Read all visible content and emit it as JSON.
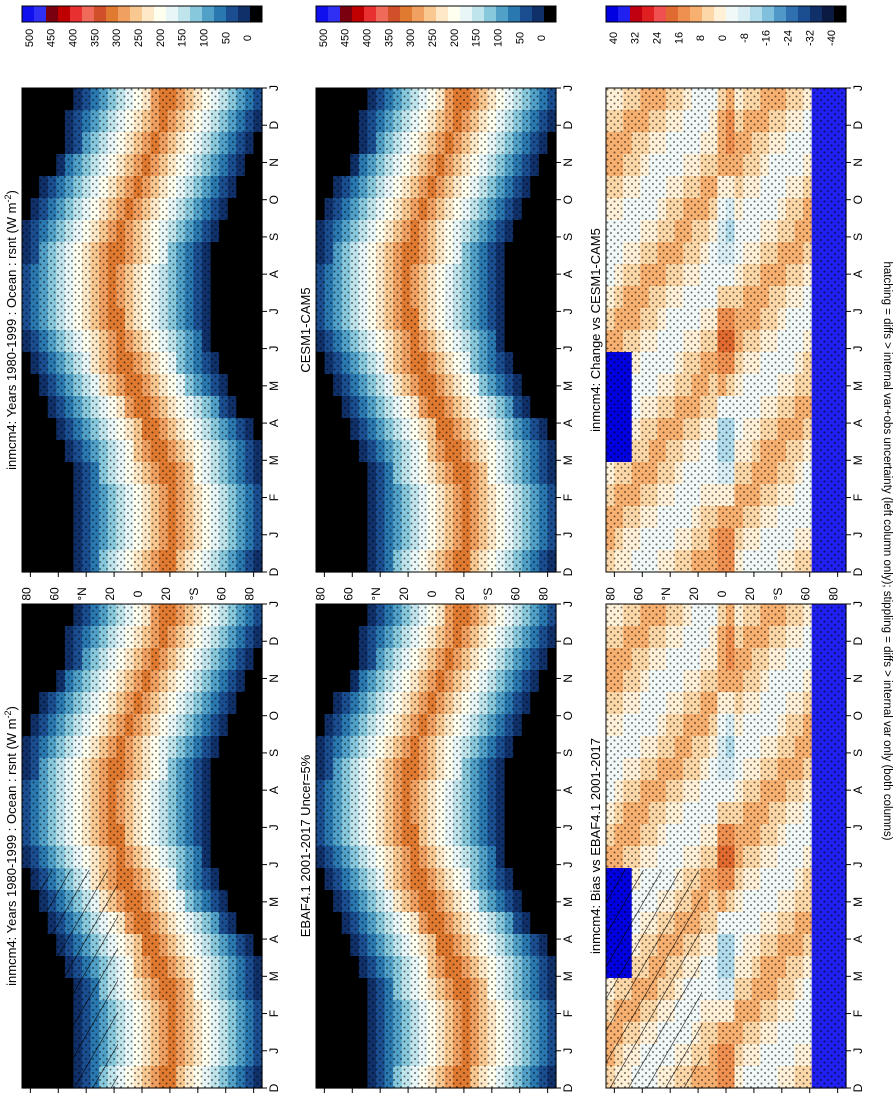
{
  "figure": {
    "footnote": "hatching = diffs > internal var+obs uncertainty (left column only); stippling = diffs > internal var only (both columns)"
  },
  "chart_data": [
    {
      "type": "heatmap",
      "id": "p_model_left",
      "title": "inmcm4: Years 1980-1999 : Ocean : rsnt (W m",
      "title_sup": "-2",
      "title_end": ")",
      "xlabel": "",
      "ylabel": "°N / °S",
      "months": [
        "D",
        "J",
        "F",
        "M",
        "A",
        "M",
        "J",
        "J",
        "A",
        "S",
        "O",
        "N",
        "D",
        "J"
      ],
      "lat_ticks": [
        "80",
        "60",
        "°N",
        "20",
        "0",
        "20",
        "°S",
        "60",
        "80"
      ],
      "colorbar_labels": [
        "500",
        "450",
        "400",
        "350",
        "300",
        "250",
        "200",
        "150",
        "100",
        "50",
        "0"
      ],
      "colorbar_colors": [
        "#1010ee",
        "#3030f5",
        "#7a0010",
        "#c00000",
        "#e83030",
        "#f06a5a",
        "#d0502a",
        "#e07a30",
        "#f0a060",
        "#f8c890",
        "#fde8c8",
        "#fffff0",
        "#e8f6f8",
        "#c0e4ec",
        "#88c8dc",
        "#50a0c8",
        "#2a78b0",
        "#1a4e90",
        "#10306a",
        "#000000"
      ],
      "field": "absolute",
      "hatched": true
    },
    {
      "type": "heatmap",
      "id": "p_model_right",
      "title": "inmcm4: Years 1980-1999 : Ocean : rsnt (W m",
      "title_sup": "-2",
      "title_end": ")",
      "months": [
        "D",
        "J",
        "F",
        "M",
        "A",
        "M",
        "J",
        "J",
        "A",
        "S",
        "O",
        "N",
        "D",
        "J"
      ],
      "lat_ticks": [
        "80",
        "60",
        "°N",
        "20",
        "0",
        "20",
        "°S",
        "60",
        "80"
      ],
      "colorbar_labels": [
        "500",
        "450",
        "400",
        "350",
        "300",
        "250",
        "200",
        "150",
        "100",
        "50",
        "0"
      ],
      "field": "absolute",
      "hatched": false
    },
    {
      "type": "heatmap",
      "id": "p_obs",
      "title": "EBAF4.1 2001-2017 Uncer=5%",
      "months": [
        "D",
        "J",
        "F",
        "M",
        "A",
        "M",
        "J",
        "J",
        "A",
        "S",
        "O",
        "N",
        "D",
        "J"
      ],
      "lat_ticks": [
        "80",
        "60",
        "°N",
        "20",
        "0",
        "20",
        "°S",
        "60",
        "80"
      ],
      "colorbar_labels": [
        "500",
        "450",
        "400",
        "350",
        "300",
        "250",
        "200",
        "150",
        "100",
        "50",
        "0"
      ],
      "field": "absolute",
      "hatched": false
    },
    {
      "type": "heatmap",
      "id": "p_ref",
      "title": "CESM1-CAM5",
      "months": [
        "D",
        "J",
        "F",
        "M",
        "A",
        "M",
        "J",
        "J",
        "A",
        "S",
        "O",
        "N",
        "D",
        "J"
      ],
      "lat_ticks": [
        "80",
        "60",
        "°N",
        "20",
        "0",
        "20",
        "°S",
        "60",
        "80"
      ],
      "colorbar_labels": [
        "500",
        "450",
        "400",
        "350",
        "300",
        "250",
        "200",
        "150",
        "100",
        "50",
        "0"
      ],
      "field": "absolute",
      "hatched": false
    },
    {
      "type": "heatmap",
      "id": "p_bias",
      "title": "inmcm4: Bias vs EBAF4.1 2001-2017",
      "months": [
        "D",
        "J",
        "F",
        "M",
        "A",
        "M",
        "J",
        "J",
        "A",
        "S",
        "O",
        "N",
        "D",
        "J"
      ],
      "lat_ticks": [
        "80",
        "60",
        "°N",
        "20",
        "0",
        "20",
        "°S",
        "60",
        "80"
      ],
      "colorbar_labels": [
        "40",
        "32",
        "24",
        "16",
        "8",
        "0",
        "-8",
        "-16",
        "-24",
        "-32",
        "-40"
      ],
      "colorbar_colors": [
        "#0000e0",
        "#2020f0",
        "#c00010",
        "#e02020",
        "#f05050",
        "#e06a30",
        "#f09050",
        "#f8b070",
        "#fcd8a8",
        "#fff0d8",
        "#f0f8f8",
        "#d8eef4",
        "#b0dcec",
        "#80c0dc",
        "#5098c8",
        "#3070b0",
        "#1a4e90",
        "#10306a",
        "#0a1a40",
        "#000000"
      ],
      "field": "diff",
      "hatched": true
    },
    {
      "type": "heatmap",
      "id": "p_change",
      "title": "inmcm4: Change vs CESM1-CAM5",
      "months": [
        "D",
        "J",
        "F",
        "M",
        "A",
        "M",
        "J",
        "J",
        "A",
        "S",
        "O",
        "N",
        "D",
        "J"
      ],
      "lat_ticks": [
        "80",
        "60",
        "°N",
        "20",
        "0",
        "20",
        "°S",
        "60",
        "80"
      ],
      "colorbar_labels": [
        "40",
        "32",
        "24",
        "16",
        "8",
        "0",
        "-8",
        "-16",
        "-24",
        "-32",
        "-40"
      ],
      "field": "diff",
      "hatched": false
    }
  ]
}
